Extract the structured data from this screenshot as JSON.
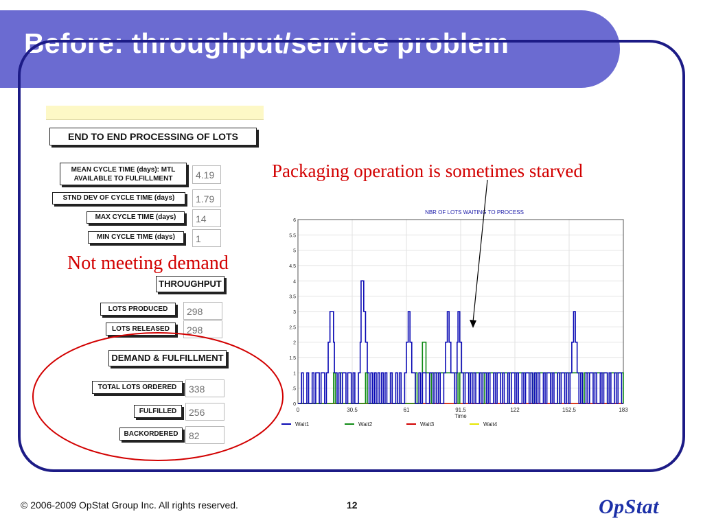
{
  "slide": {
    "title": "Before: throughput/service problem",
    "footer_copyright": "© 2006-2009 OpStat Group Inc.  All rights reserved.",
    "page_number": "12",
    "logo_text": "OpStat",
    "colors": {
      "title_band": "#6b6bd1",
      "frame": "#1c1b86",
      "annotation": "#d20000",
      "logo": "#1c30a8"
    }
  },
  "e2e": {
    "header": "END TO END PROCESSING OF LOTS",
    "mean_cycle_label_line1": "MEAN CYCLE TIME (days):  MTL",
    "mean_cycle_label_line2": "AVAILABLE TO FULFILLMENT",
    "mean_cycle_value": "4.19",
    "stdev_label": "STND DEV OF CYCLE TIME (days)",
    "stdev_value": "1.79",
    "max_label": "MAX CYCLE TIME (days)",
    "max_value": "14",
    "min_label": "MIN CYCLE TIME (days)",
    "min_value": "1"
  },
  "throughput": {
    "header": "THROUGHPUT",
    "lots_produced_label": "LOTS PRODUCED",
    "lots_produced_value": "298",
    "lots_released_label": "LOTS RELEASED",
    "lots_released_value": "298"
  },
  "demand": {
    "header": "DEMAND & FULFILLMENT",
    "total_ordered_label": "TOTAL LOTS ORDERED",
    "total_ordered_value": "338",
    "fulfilled_label": "FULFILLED",
    "fulfilled_value": "256",
    "backordered_label": "BACKORDERED",
    "backordered_value": "82"
  },
  "annotations": {
    "not_meeting_demand": "Not meeting demand",
    "packaging_starved": "Packaging operation is sometimes starved"
  },
  "chart_data": {
    "type": "line",
    "step": true,
    "title": "NBR OF LOTS WAITING TO PROCESS",
    "xlabel": "Time",
    "ylabel": "",
    "xlim": [
      0,
      183
    ],
    "ylim": [
      0,
      6
    ],
    "x_ticks": [
      "0",
      "30.5",
      "61",
      "91.5",
      "122",
      "152.5",
      "183"
    ],
    "y_ticks": [
      "0",
      ".5",
      "1",
      "1.5",
      "2",
      "2.5",
      "3",
      "3.5",
      "4",
      "4.5",
      "5",
      "5.5",
      "6"
    ],
    "grid": true,
    "legend_position": "bottom",
    "series": [
      {
        "name": "Wait1",
        "color": "#0a0ab4",
        "x": [
          0,
          2,
          3,
          5,
          6,
          8,
          9,
          10,
          12,
          13,
          15,
          16,
          17,
          18,
          20,
          20.5,
          22,
          23,
          24,
          25,
          27,
          28,
          30,
          31,
          32,
          34,
          35,
          35.5,
          37,
          38,
          39,
          40,
          41,
          42,
          43,
          44,
          45,
          46,
          47,
          48,
          49,
          50,
          52,
          53,
          55,
          56,
          57,
          58,
          60,
          61,
          62,
          63,
          64,
          66,
          68,
          69,
          70,
          72,
          74,
          76,
          77,
          78,
          79,
          80,
          82,
          83,
          84,
          85,
          86,
          88,
          89,
          89.5,
          90,
          91,
          92,
          93,
          94,
          96,
          97,
          98,
          99,
          100,
          102,
          103,
          104,
          106,
          107,
          108,
          110,
          111,
          112,
          114,
          115,
          116,
          118,
          119,
          120,
          122,
          123,
          124,
          126,
          127,
          128,
          130,
          131,
          132,
          133,
          134,
          135,
          136,
          138,
          139,
          140,
          142,
          143,
          144,
          146,
          147,
          148,
          150,
          151,
          152,
          153,
          154,
          155,
          156,
          157,
          158,
          159,
          160,
          162,
          163,
          164,
          166,
          167,
          168,
          170,
          171,
          172,
          174,
          175,
          176,
          178,
          179,
          180,
          182
        ],
        "y": [
          0,
          1,
          0,
          1,
          0,
          1,
          0,
          1,
          0,
          1,
          0,
          1,
          2,
          3,
          2,
          1,
          0,
          1,
          0,
          1,
          0,
          1,
          0,
          1,
          0,
          1,
          2,
          4,
          3,
          2,
          1,
          0,
          1,
          0,
          1,
          0,
          1,
          0,
          1,
          0,
          1,
          0,
          1,
          0,
          1,
          0,
          1,
          0,
          1,
          2,
          3,
          2,
          1,
          0,
          1,
          0,
          1,
          0,
          1,
          0,
          1,
          0,
          1,
          0,
          1,
          2,
          3,
          2,
          1,
          0,
          1,
          2,
          3,
          2,
          1,
          0,
          1,
          0,
          1,
          0,
          1,
          0,
          1,
          0,
          1,
          0,
          1,
          0,
          1,
          0,
          1,
          0,
          1,
          0,
          1,
          0,
          1,
          0,
          1,
          0,
          1,
          0,
          1,
          0,
          1,
          0,
          1,
          0,
          1,
          0,
          1,
          0,
          1,
          0,
          1,
          0,
          1,
          0,
          1,
          0,
          1,
          0,
          1,
          2,
          3,
          2,
          1,
          0,
          1,
          0,
          1,
          0,
          1,
          0,
          1,
          0,
          1,
          0,
          1,
          0,
          1,
          0,
          1,
          0,
          1,
          0
        ]
      },
      {
        "name": "Wait2",
        "color": "#0f8a14",
        "x": [
          0,
          20,
          21,
          24,
          25,
          38,
          39,
          52,
          53,
          66,
          67,
          70,
          72,
          75,
          76,
          90,
          91,
          104,
          105,
          118,
          119,
          132,
          133,
          146,
          147,
          160,
          161,
          174,
          175,
          183
        ],
        "y": [
          0,
          1,
          0,
          1,
          0,
          1,
          0,
          1,
          0,
          1,
          0,
          2,
          1,
          0,
          1,
          0,
          1,
          0,
          1,
          0,
          1,
          0,
          1,
          0,
          1,
          0,
          1,
          0,
          1,
          0
        ]
      },
      {
        "name": "Wait3",
        "color": "#d10000",
        "x": [
          0,
          183
        ],
        "y": [
          0,
          0
        ]
      },
      {
        "name": "Wait4",
        "color": "#e6e600",
        "x": [
          0,
          183
        ],
        "y": [
          0,
          0
        ]
      }
    ]
  }
}
